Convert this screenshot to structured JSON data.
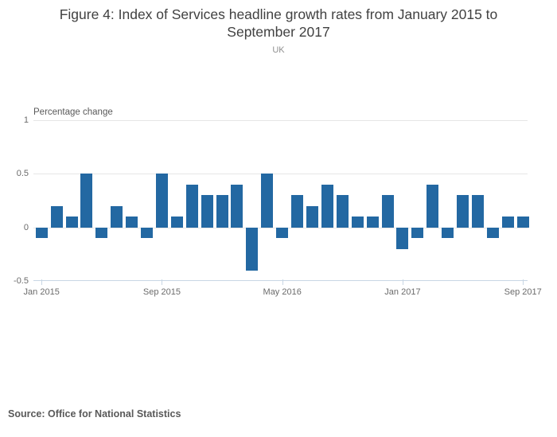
{
  "title": "Figure 4: Index of Services headline growth rates from January 2015 to September 2017",
  "subtitle": "UK",
  "source": "Source: Office for National Statistics",
  "colors": {
    "bar": "#2368a2",
    "gridline": "#e6e6e6",
    "axis_line": "#c8d6e4",
    "title_text": "#414141",
    "tick_text": "#6b6b6b"
  },
  "chart_data": {
    "type": "bar",
    "title": "Figure 4: Index of Services headline growth rates from January 2015 to September 2017",
    "subtitle": "UK",
    "xlabel": "",
    "ylabel": "Percentage change",
    "ylim": [
      -0.5,
      1
    ],
    "grid": true,
    "legend": "none",
    "categories": [
      "Jan 2015",
      "Feb 2015",
      "Mar 2015",
      "Apr 2015",
      "May 2015",
      "Jun 2015",
      "Jul 2015",
      "Aug 2015",
      "Sep 2015",
      "Oct 2015",
      "Nov 2015",
      "Dec 2015",
      "Jan 2016",
      "Feb 2016",
      "Mar 2016",
      "Apr 2016",
      "May 2016",
      "Jun 2016",
      "Jul 2016",
      "Aug 2016",
      "Sep 2016",
      "Oct 2016",
      "Nov 2016",
      "Dec 2016",
      "Jan 2017",
      "Feb 2017",
      "Mar 2017",
      "Apr 2017",
      "May 2017",
      "Jun 2017",
      "Jul 2017",
      "Aug 2017",
      "Sep 2017"
    ],
    "values": [
      -0.1,
      0.2,
      0.1,
      0.5,
      -0.1,
      0.2,
      0.1,
      -0.1,
      0.5,
      0.1,
      0.4,
      0.3,
      0.3,
      0.4,
      -0.4,
      0.5,
      -0.1,
      0.3,
      0.2,
      0.4,
      0.3,
      0.1,
      0.1,
      0.3,
      -0.2,
      -0.1,
      0.4,
      -0.1,
      0.3,
      0.3,
      -0.1,
      0.1,
      0.1
    ],
    "y_ticks": [
      {
        "value": 1,
        "label": "1"
      },
      {
        "value": 0.5,
        "label": "0.5"
      },
      {
        "value": 0,
        "label": "0"
      },
      {
        "value": -0.5,
        "label": "-0.5"
      }
    ],
    "x_ticks": [
      {
        "index": 0,
        "label": "Jan 2015"
      },
      {
        "index": 8,
        "label": "Sep 2015"
      },
      {
        "index": 16,
        "label": "May 2016"
      },
      {
        "index": 24,
        "label": "Jan 2017"
      },
      {
        "index": 32,
        "label": "Sep 2017"
      }
    ]
  }
}
